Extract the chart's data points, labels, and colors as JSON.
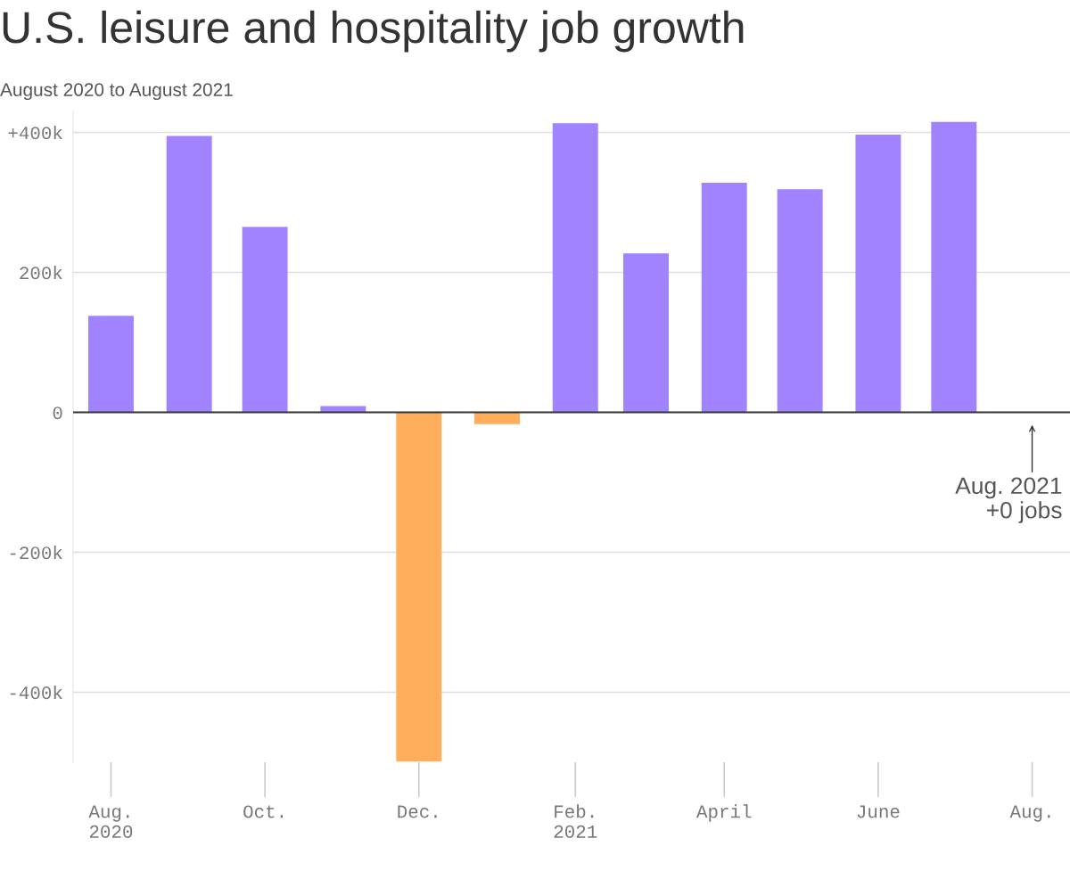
{
  "chart_data": {
    "type": "bar",
    "title": "U.S. leisure and hospitality job growth",
    "subtitle": "August 2020 to August 2021",
    "x": [
      "2020-08",
      "2020-09",
      "2020-10",
      "2020-11",
      "2020-12",
      "2021-01",
      "2021-02",
      "2021-03",
      "2021-04",
      "2021-05",
      "2021-06",
      "2021-07",
      "2021-08"
    ],
    "values": [
      138,
      395,
      265,
      9,
      -499,
      -17,
      413,
      227,
      328,
      319,
      397,
      415,
      0
    ],
    "colors": [
      "#a283ff",
      "#a283ff",
      "#a283ff",
      "#a283ff",
      "#ffae5c",
      "#ffae5c",
      "#a283ff",
      "#a283ff",
      "#a283ff",
      "#a283ff",
      "#a283ff",
      "#a283ff",
      "#a283ff"
    ],
    "xlim": [
      "2020-07-17",
      "2021-08-16"
    ],
    "xticks": [
      {
        "value": "2020-08",
        "label": "Aug.\n2020"
      },
      {
        "value": "2020-10",
        "label": "Oct."
      },
      {
        "value": "2020-12",
        "label": "Dec."
      },
      {
        "value": "2021-02",
        "label": "Feb.\n2021"
      },
      {
        "value": "2021-04",
        "label": "April"
      },
      {
        "value": "2021-06",
        "label": "June"
      },
      {
        "value": "2021-08",
        "label": "Aug."
      }
    ],
    "ylim": [
      -500,
      430
    ],
    "yticks": [
      {
        "value": 400,
        "label": "+400k"
      },
      {
        "value": 200,
        "label": "200k"
      },
      {
        "value": 0,
        "label": "0"
      },
      {
        "value": -200,
        "label": "-200k"
      },
      {
        "value": -400,
        "label": "-400k"
      }
    ],
    "grid": "y",
    "annotations": [
      {
        "text": "Aug. 2021\n+0 jobs",
        "x": "2021-08",
        "y": 0
      }
    ]
  }
}
